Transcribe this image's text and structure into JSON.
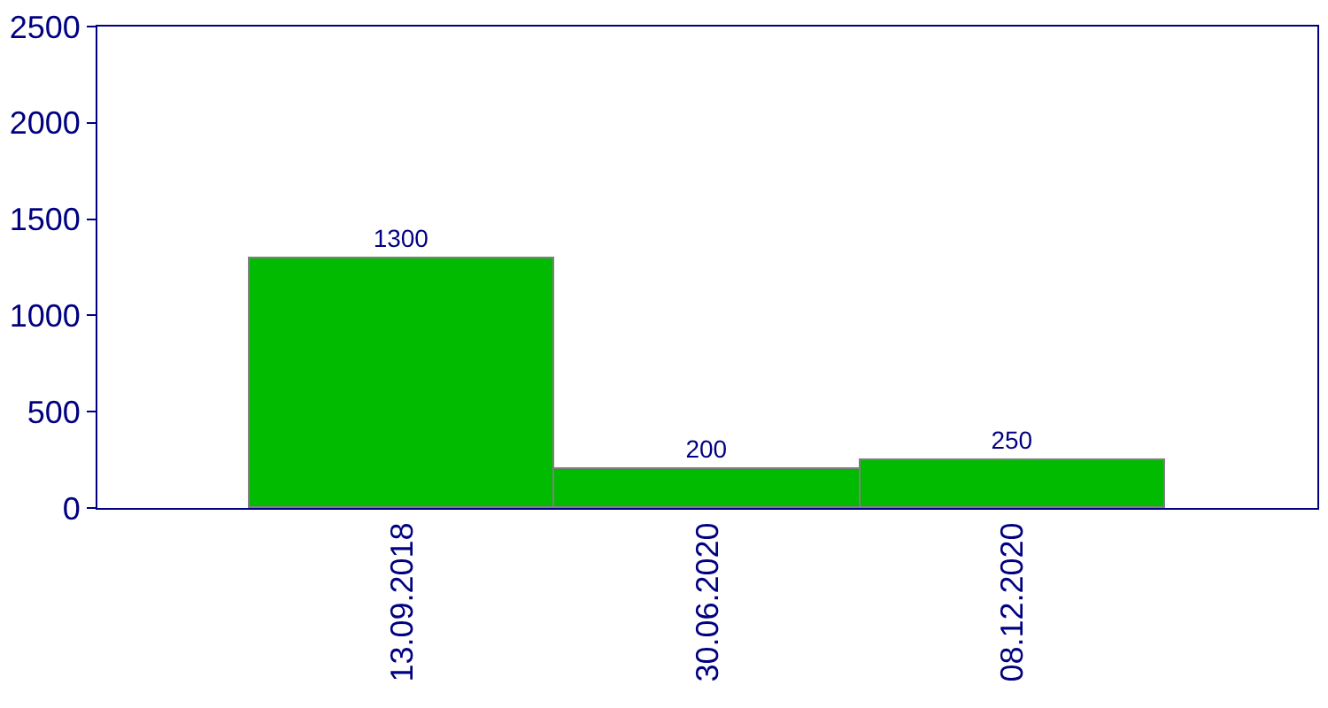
{
  "chart_data": {
    "type": "bar",
    "categories": [
      "13.09.2018",
      "30.06.2020",
      "08.12.2020"
    ],
    "values": [
      1300,
      200,
      250
    ],
    "color": "#00bb00",
    "ylim": [
      0,
      2500
    ],
    "yticks": [
      0,
      500,
      1000,
      1500,
      2000,
      2500
    ],
    "data_labels": true
  }
}
